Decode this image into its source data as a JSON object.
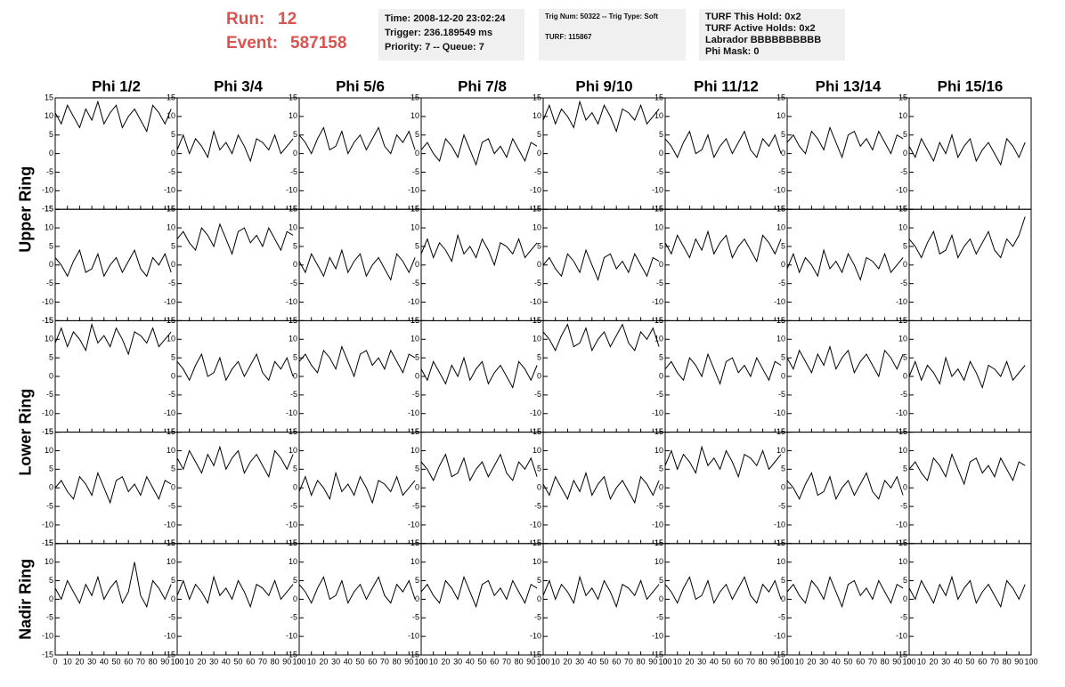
{
  "header": {
    "run_label": "Run:",
    "run": 12,
    "event_label": "Event:",
    "event": 587158,
    "box1": [
      "Time: 2008-12-20 23:02:24",
      "Trigger: 236.189549 ms",
      "Priority: 7 -- Queue: 7"
    ],
    "box2": [
      "Trig Num: 50322 -- Trig Type: Soft",
      "TURF: 115867"
    ],
    "box3": [
      "TURF This Hold: 0x2",
      "TURF Active Holds: 0x2",
      "Labrador BBBBBBBBBB",
      "Phi Mask: 0"
    ]
  },
  "chart_data": {
    "type": "line",
    "color": "#000000",
    "columns": [
      "Phi 1/2",
      "Phi 3/4",
      "Phi 5/6",
      "Phi 7/8",
      "Phi 9/10",
      "Phi 11/12",
      "Phi 13/14",
      "Phi 15/16"
    ],
    "rings": [
      "Upper Ring",
      "Lower Ring",
      "Nadir Ring"
    ],
    "xlim": [
      0,
      100
    ],
    "xticks": [
      0,
      10,
      20,
      30,
      40,
      50,
      60,
      70,
      80,
      90,
      100
    ],
    "ylim": [
      -15,
      15
    ],
    "yticks": [
      -15,
      -10,
      -5,
      0,
      5,
      10,
      15
    ],
    "x": [
      0,
      5,
      10,
      15,
      20,
      25,
      30,
      35,
      40,
      45,
      50,
      55,
      60,
      65,
      70,
      75,
      80,
      85,
      90,
      95
    ],
    "panels": [
      [
        11,
        8,
        13,
        10,
        7,
        12,
        9,
        14,
        8,
        11,
        13,
        7,
        10,
        12,
        9,
        6,
        13,
        11,
        8,
        12
      ],
      [
        1,
        5,
        0,
        4,
        2,
        -1,
        6,
        1,
        3,
        0,
        5,
        2,
        -2,
        4,
        3,
        1,
        5,
        0,
        2,
        4
      ],
      [
        5,
        3,
        0,
        4,
        7,
        1,
        2,
        6,
        0,
        3,
        5,
        1,
        4,
        7,
        2,
        0,
        5,
        3,
        6,
        1
      ],
      [
        1,
        3,
        0,
        -2,
        4,
        2,
        -1,
        5,
        1,
        -3,
        3,
        4,
        0,
        2,
        -1,
        4,
        1,
        -2,
        3,
        2
      ],
      [
        9,
        13,
        8,
        12,
        10,
        7,
        14,
        9,
        11,
        8,
        13,
        10,
        6,
        12,
        11,
        9,
        13,
        8,
        10,
        12
      ],
      [
        4,
        2,
        -1,
        3,
        6,
        0,
        1,
        5,
        -1,
        2,
        4,
        0,
        3,
        6,
        1,
        -1,
        4,
        2,
        5,
        0
      ],
      [
        3,
        5,
        2,
        0,
        6,
        4,
        1,
        7,
        3,
        -1,
        5,
        6,
        2,
        4,
        1,
        6,
        3,
        0,
        5,
        4
      ],
      [
        2,
        -1,
        4,
        1,
        -2,
        3,
        0,
        5,
        -1,
        2,
        4,
        -2,
        1,
        3,
        0,
        -3,
        4,
        2,
        -1,
        3
      ],
      [
        2,
        0,
        -3,
        1,
        4,
        -2,
        -1,
        3,
        -3,
        0,
        2,
        -2,
        1,
        4,
        -1,
        -3,
        2,
        0,
        3,
        -2
      ],
      [
        7,
        9,
        6,
        4,
        10,
        8,
        5,
        11,
        7,
        3,
        9,
        10,
        6,
        8,
        5,
        10,
        7,
        4,
        9,
        8
      ],
      [
        1,
        -2,
        3,
        0,
        -3,
        2,
        -1,
        4,
        -2,
        1,
        3,
        -3,
        0,
        2,
        -1,
        -4,
        3,
        1,
        -2,
        2
      ],
      [
        3,
        7,
        2,
        6,
        4,
        1,
        8,
        3,
        5,
        2,
        7,
        4,
        0,
        6,
        5,
        3,
        7,
        2,
        4,
        6
      ],
      [
        0,
        2,
        -1,
        -3,
        3,
        1,
        -2,
        4,
        0,
        -4,
        2,
        3,
        -1,
        1,
        -2,
        3,
        0,
        -3,
        2,
        1
      ],
      [
        6,
        3,
        8,
        5,
        2,
        7,
        4,
        9,
        3,
        6,
        8,
        2,
        5,
        7,
        4,
        1,
        8,
        6,
        3,
        7
      ],
      [
        -1,
        3,
        -2,
        2,
        0,
        -3,
        4,
        -1,
        1,
        -2,
        3,
        0,
        -4,
        2,
        1,
        -1,
        3,
        -2,
        0,
        2
      ],
      [
        7,
        5,
        2,
        6,
        9,
        3,
        4,
        8,
        2,
        5,
        7,
        3,
        6,
        9,
        4,
        2,
        7,
        5,
        8,
        13
      ],
      [
        9,
        13,
        8,
        12,
        10,
        7,
        14,
        9,
        11,
        8,
        13,
        10,
        6,
        12,
        11,
        9,
        13,
        8,
        10,
        12
      ],
      [
        4,
        2,
        -1,
        3,
        6,
        0,
        1,
        5,
        -1,
        2,
        4,
        0,
        3,
        6,
        1,
        -1,
        4,
        2,
        5,
        0
      ],
      [
        4,
        6,
        3,
        1,
        7,
        5,
        2,
        8,
        4,
        0,
        6,
        7,
        3,
        5,
        2,
        7,
        4,
        1,
        6,
        5
      ],
      [
        2,
        -1,
        4,
        1,
        -2,
        3,
        0,
        5,
        -1,
        2,
        4,
        -2,
        1,
        3,
        0,
        -3,
        4,
        2,
        -1,
        3
      ],
      [
        12,
        10,
        7,
        11,
        14,
        8,
        9,
        13,
        7,
        10,
        12,
        8,
        11,
        14,
        9,
        7,
        12,
        10,
        13,
        8
      ],
      [
        2,
        4,
        1,
        -1,
        5,
        3,
        0,
        6,
        2,
        -2,
        4,
        5,
        1,
        3,
        0,
        5,
        2,
        -1,
        4,
        3
      ],
      [
        5,
        2,
        7,
        4,
        1,
        6,
        3,
        8,
        2,
        5,
        7,
        1,
        4,
        6,
        3,
        0,
        7,
        5,
        2,
        6
      ],
      [
        0,
        4,
        -1,
        3,
        1,
        -2,
        5,
        0,
        2,
        -1,
        4,
        1,
        -3,
        3,
        2,
        0,
        4,
        -1,
        1,
        3
      ],
      [
        0,
        2,
        -1,
        -3,
        3,
        1,
        -2,
        4,
        0,
        -4,
        2,
        3,
        -1,
        1,
        -2,
        3,
        0,
        -3,
        2,
        1
      ],
      [
        8,
        5,
        10,
        7,
        4,
        9,
        6,
        11,
        5,
        8,
        10,
        4,
        7,
        9,
        6,
        3,
        10,
        8,
        5,
        9
      ],
      [
        -1,
        3,
        -2,
        2,
        0,
        -3,
        4,
        -1,
        1,
        -2,
        3,
        0,
        -4,
        2,
        1,
        -1,
        3,
        -2,
        0,
        2
      ],
      [
        7,
        5,
        2,
        6,
        9,
        3,
        4,
        8,
        2,
        5,
        7,
        3,
        6,
        9,
        4,
        2,
        7,
        5,
        8,
        3
      ],
      [
        1,
        -2,
        3,
        0,
        -3,
        2,
        -1,
        4,
        -2,
        1,
        3,
        -3,
        0,
        2,
        -1,
        -4,
        3,
        1,
        -2,
        2
      ],
      [
        6,
        10,
        5,
        9,
        7,
        4,
        11,
        6,
        8,
        5,
        10,
        7,
        3,
        9,
        8,
        6,
        10,
        5,
        7,
        9
      ],
      [
        2,
        0,
        -3,
        1,
        4,
        -2,
        -1,
        3,
        -3,
        0,
        2,
        -2,
        1,
        4,
        -1,
        -3,
        2,
        0,
        3,
        -2
      ],
      [
        5,
        7,
        4,
        2,
        8,
        6,
        3,
        9,
        5,
        1,
        7,
        8,
        4,
        6,
        3,
        8,
        5,
        2,
        7,
        6
      ],
      [
        3,
        0,
        5,
        2,
        -1,
        4,
        1,
        6,
        0,
        3,
        5,
        -1,
        2,
        10,
        1,
        -2,
        5,
        3,
        0,
        4
      ],
      [
        1,
        5,
        0,
        4,
        2,
        -1,
        6,
        1,
        3,
        0,
        5,
        2,
        -2,
        4,
        3,
        1,
        5,
        0,
        2,
        4
      ],
      [
        4,
        2,
        -1,
        3,
        6,
        0,
        1,
        5,
        -1,
        2,
        4,
        0,
        3,
        6,
        1,
        -1,
        4,
        2,
        5,
        0
      ],
      [
        2,
        4,
        1,
        -1,
        5,
        3,
        0,
        6,
        2,
        -2,
        4,
        5,
        1,
        3,
        0,
        5,
        2,
        -1,
        4,
        3
      ],
      [
        1,
        5,
        0,
        4,
        2,
        -1,
        6,
        1,
        3,
        0,
        5,
        2,
        -2,
        4,
        3,
        1,
        5,
        0,
        2,
        4
      ],
      [
        4,
        2,
        -1,
        3,
        6,
        0,
        1,
        5,
        -1,
        2,
        4,
        0,
        3,
        6,
        1,
        -1,
        4,
        2,
        5,
        0
      ],
      [
        2,
        4,
        1,
        -1,
        5,
        3,
        0,
        6,
        2,
        -2,
        4,
        5,
        1,
        3,
        0,
        5,
        2,
        -1,
        4,
        3
      ],
      [
        3,
        0,
        5,
        2,
        -1,
        4,
        1,
        6,
        0,
        3,
        5,
        -1,
        2,
        4,
        1,
        -2,
        5,
        3,
        0,
        4
      ]
    ]
  }
}
